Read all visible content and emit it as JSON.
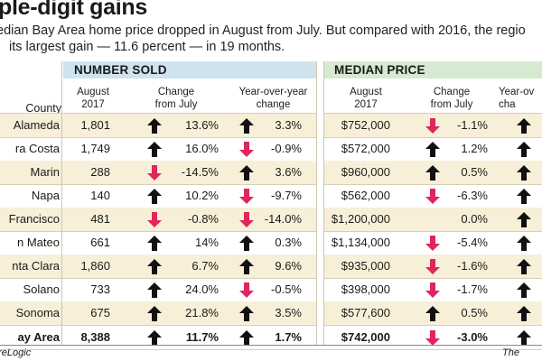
{
  "headline": "ple-digit gains",
  "subhead_line1": "edian Bay Area home price dropped in August from July. But compared with 2016, the regio",
  "subhead_line2": "its largest gain — 11.6 percent — in 19 months.",
  "colors": {
    "up_arrow": "#111111",
    "down_arrow": "#e0265c",
    "number_sold_band": "#cfe3ef",
    "median_price_band": "#d6ead2",
    "row_shade": "#f7efd8"
  },
  "sections": {
    "number_sold": "NUMBER SOLD",
    "median_price": "MEDIAN PRICE"
  },
  "columns": {
    "county": "County",
    "sold_aug": "August\n2017",
    "sold_change": "Change\nfrom July",
    "sold_yoy": "Year-over-year\nchange",
    "price_aug": "August\n2017",
    "price_change": "Change\nfrom July",
    "price_yoy": "Year-ov\ncha"
  },
  "rows": [
    {
      "county": "Alameda",
      "sold": "1,801",
      "sold_change": "13.6%",
      "sold_change_dir": "up",
      "sold_yoy": "3.3%",
      "sold_yoy_dir": "up",
      "price": "$752,000",
      "price_change": "-1.1%",
      "price_change_dir": "down",
      "price_yoy_dir": "up"
    },
    {
      "county": "ra Costa",
      "sold": "1,749",
      "sold_change": "16.0%",
      "sold_change_dir": "up",
      "sold_yoy": "-0.9%",
      "sold_yoy_dir": "down",
      "price": "$572,000",
      "price_change": "1.2%",
      "price_change_dir": "up",
      "price_yoy_dir": "up"
    },
    {
      "county": "Marin",
      "sold": "288",
      "sold_change": "-14.5%",
      "sold_change_dir": "down",
      "sold_yoy": "3.6%",
      "sold_yoy_dir": "up",
      "price": "$960,000",
      "price_change": "0.5%",
      "price_change_dir": "up",
      "price_yoy_dir": "up"
    },
    {
      "county": "Napa",
      "sold": "140",
      "sold_change": "10.2%",
      "sold_change_dir": "up",
      "sold_yoy": "-9.7%",
      "sold_yoy_dir": "down",
      "price": "$562,000",
      "price_change": "-6.3%",
      "price_change_dir": "down",
      "price_yoy_dir": "up"
    },
    {
      "county": "Francisco",
      "sold": "481",
      "sold_change": "-0.8%",
      "sold_change_dir": "down",
      "sold_yoy": "-14.0%",
      "sold_yoy_dir": "down",
      "price": "$1,200,000",
      "price_change": "0.0%",
      "price_change_dir": "none",
      "price_yoy_dir": "up"
    },
    {
      "county": "n Mateo",
      "sold": "661",
      "sold_change": "14%",
      "sold_change_dir": "up",
      "sold_yoy": "0.3%",
      "sold_yoy_dir": "up",
      "price": "$1,134,000",
      "price_change": "-5.4%",
      "price_change_dir": "down",
      "price_yoy_dir": "up"
    },
    {
      "county": "nta Clara",
      "sold": "1,860",
      "sold_change": "6.7%",
      "sold_change_dir": "up",
      "sold_yoy": "9.6%",
      "sold_yoy_dir": "up",
      "price": "$935,000",
      "price_change": "-1.6%",
      "price_change_dir": "down",
      "price_yoy_dir": "up"
    },
    {
      "county": "Solano",
      "sold": "733",
      "sold_change": "24.0%",
      "sold_change_dir": "up",
      "sold_yoy": "-0.5%",
      "sold_yoy_dir": "down",
      "price": "$398,000",
      "price_change": "-1.7%",
      "price_change_dir": "down",
      "price_yoy_dir": "up"
    },
    {
      "county": "Sonoma",
      "sold": "675",
      "sold_change": "21.8%",
      "sold_change_dir": "up",
      "sold_yoy": "3.5%",
      "sold_yoy_dir": "up",
      "price": "$577,600",
      "price_change": "0.5%",
      "price_change_dir": "up",
      "price_yoy_dir": "up"
    }
  ],
  "total": {
    "county": "ay Area",
    "sold": "8,388",
    "sold_change": "11.7%",
    "sold_change_dir": "up",
    "sold_yoy": "1.7%",
    "sold_yoy_dir": "up",
    "price": "$742,000",
    "price_change": "-3.0%",
    "price_change_dir": "down",
    "price_yoy_dir": "up"
  },
  "footer": {
    "source": "oreLogic",
    "credit": "The"
  }
}
